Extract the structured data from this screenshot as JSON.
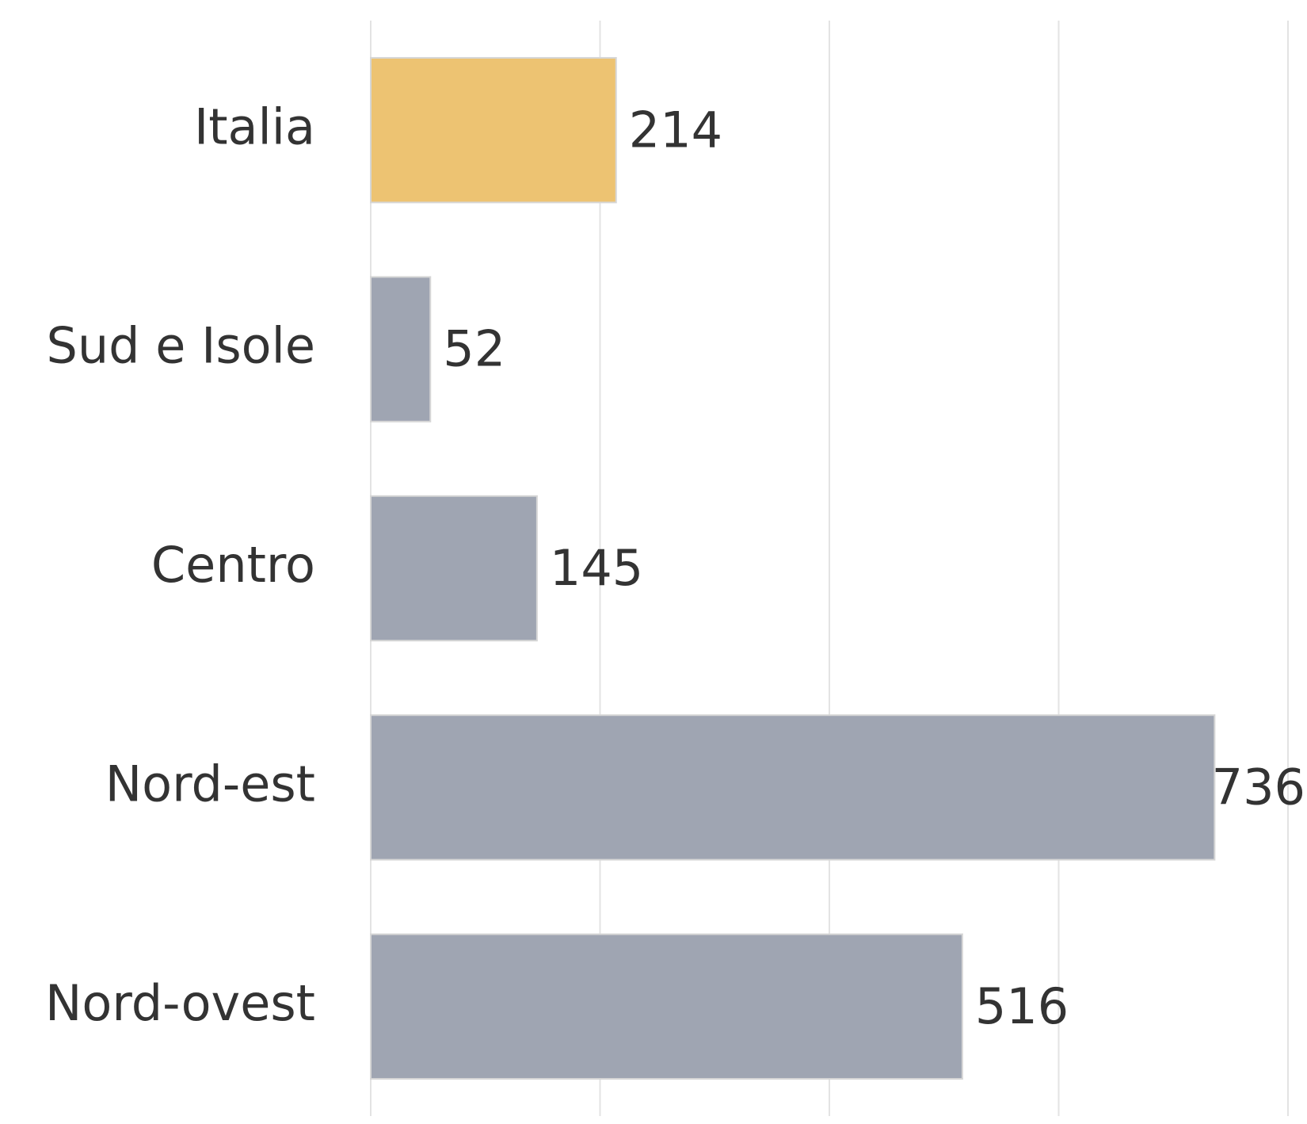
{
  "chart_data": {
    "type": "barh",
    "categories": [
      "Italia",
      "Sud e Isole",
      "Centro",
      "Nord-est",
      "Nord-ovest"
    ],
    "values": [
      214,
      52,
      145,
      736,
      516
    ],
    "colors": [
      "#edc372",
      "#9fa5b2",
      "#9fa5b2",
      "#9fa5b2",
      "#9fa5b2"
    ],
    "xlim": [
      0,
      800
    ],
    "xticks": [
      0,
      200,
      400,
      600,
      800
    ],
    "grid": true
  }
}
